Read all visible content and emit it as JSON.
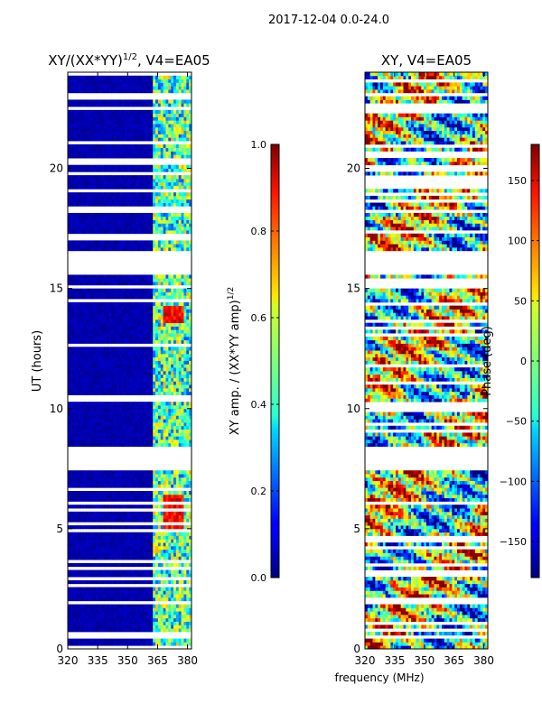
{
  "figure": {
    "suptitle": "2017-12-04 0.0-24.0"
  },
  "chart_data": [
    {
      "type": "heatmap",
      "title_main": "XY/(XX*YY)",
      "title_exp": "1/2",
      "title_tail": ", V4=EA05",
      "xlabel": "",
      "ylabel": "UT (hours)",
      "xlim": [
        320,
        382
      ],
      "ylim": [
        0,
        24
      ],
      "xticks": [
        "320",
        "335",
        "350",
        "365",
        "380"
      ],
      "xtick_values": [
        320,
        335,
        350,
        365,
        380
      ],
      "yticks": [
        "0",
        "5",
        "10",
        "15",
        "20"
      ],
      "ytick_values": [
        0,
        5,
        10,
        15,
        20
      ],
      "data_gaps_hours": [
        [
          7.5,
          8.4
        ],
        [
          15.6,
          16.6
        ]
      ],
      "colorbar": {
        "label_main": "XY amp. / (XX*YY amp)",
        "label_exp": "1/2",
        "range": [
          0.0,
          1.0
        ],
        "ticks": [
          "0.0",
          "0.2",
          "0.4",
          "0.6",
          "0.8",
          "1.0"
        ],
        "tick_values": [
          0.0,
          0.2,
          0.4,
          0.6,
          0.8,
          1.0
        ],
        "colormap": "jet"
      }
    },
    {
      "type": "heatmap",
      "title": "XY, V4=EA05",
      "xlabel": "frequency (MHz)",
      "ylabel": "",
      "xlim": [
        320,
        382
      ],
      "ylim": [
        0,
        24
      ],
      "xticks": [
        "320",
        "335",
        "350",
        "365",
        "380"
      ],
      "xtick_values": [
        320,
        335,
        350,
        365,
        380
      ],
      "yticks": [
        "0",
        "5",
        "10",
        "15",
        "20"
      ],
      "ytick_values": [
        0,
        5,
        10,
        15,
        20
      ],
      "data_gaps_hours": [
        [
          7.5,
          8.4
        ],
        [
          15.6,
          16.6
        ]
      ],
      "colorbar": {
        "label": "Phase (deg)",
        "range": [
          -180,
          180
        ],
        "ticks": [
          "−150",
          "−100",
          "−50",
          "0",
          "50",
          "100",
          "150"
        ],
        "tick_values": [
          -150,
          -100,
          -50,
          0,
          50,
          100,
          150
        ],
        "colormap": "jet"
      }
    }
  ],
  "colors": {
    "background": "#ffffff",
    "axis": "#000000",
    "gap": "#ffffff"
  }
}
